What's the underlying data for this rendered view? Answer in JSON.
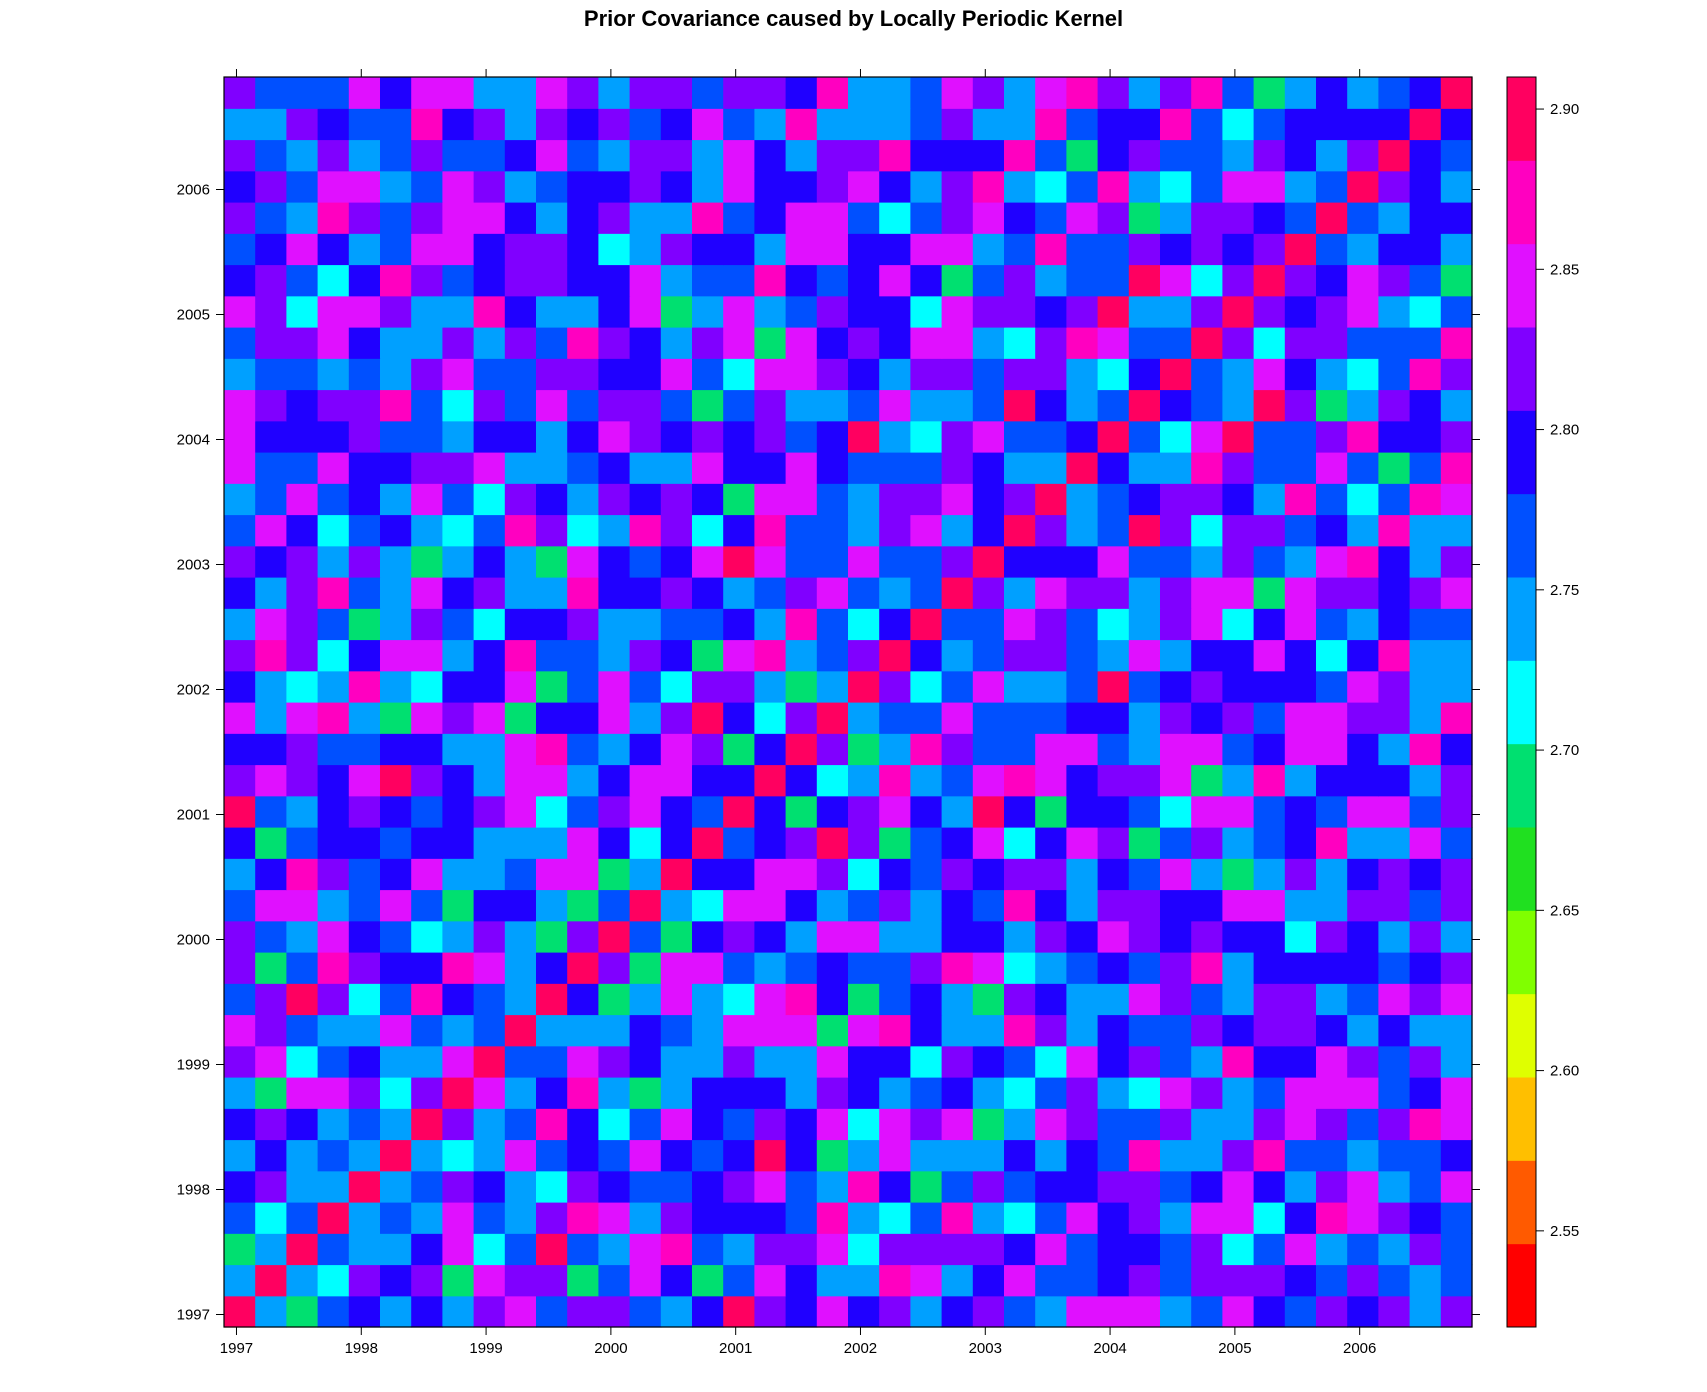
{
  "chart_data": {
    "type": "heatmap",
    "title": "Prior Covariance caused by Locally Periodic Kernel",
    "xlabel": "",
    "ylabel": "",
    "x_ticks": [
      "1997",
      "1998",
      "1999",
      "2000",
      "2001",
      "2002",
      "2003",
      "2004",
      "2005",
      "2006"
    ],
    "y_ticks": [
      "1997",
      "1998",
      "1999",
      "2000",
      "2001",
      "2002",
      "2003",
      "2004",
      "2005",
      "2006"
    ],
    "xlim": [
      1996.9,
      2006.9
    ],
    "ylim": [
      1996.9,
      2006.9
    ],
    "grid_size": 40,
    "cell_span_years": 0.25,
    "colorbar": {
      "range": [
        2.52,
        2.91
      ],
      "ticks": [
        "2.55",
        "2.60",
        "2.65",
        "2.70",
        "2.75",
        "2.80",
        "2.85",
        "2.90"
      ],
      "tick_values": [
        2.55,
        2.6,
        2.65,
        2.7,
        2.75,
        2.8,
        2.85,
        2.9
      ],
      "colors": [
        "#ff0000",
        "#ff5a00",
        "#ffbf00",
        "#dfff00",
        "#80ff00",
        "#20e020",
        "#00e070",
        "#00ffff",
        "#00a0ff",
        "#0050ff",
        "#2000ff",
        "#8000ff",
        "#e010ff",
        "#ff00c0",
        "#ff0060"
      ]
    },
    "description_note": "",
    "values_pattern": {
      "diagonal": 2.9,
      "base": 2.79,
      "amplitude": 0.055
    }
  }
}
